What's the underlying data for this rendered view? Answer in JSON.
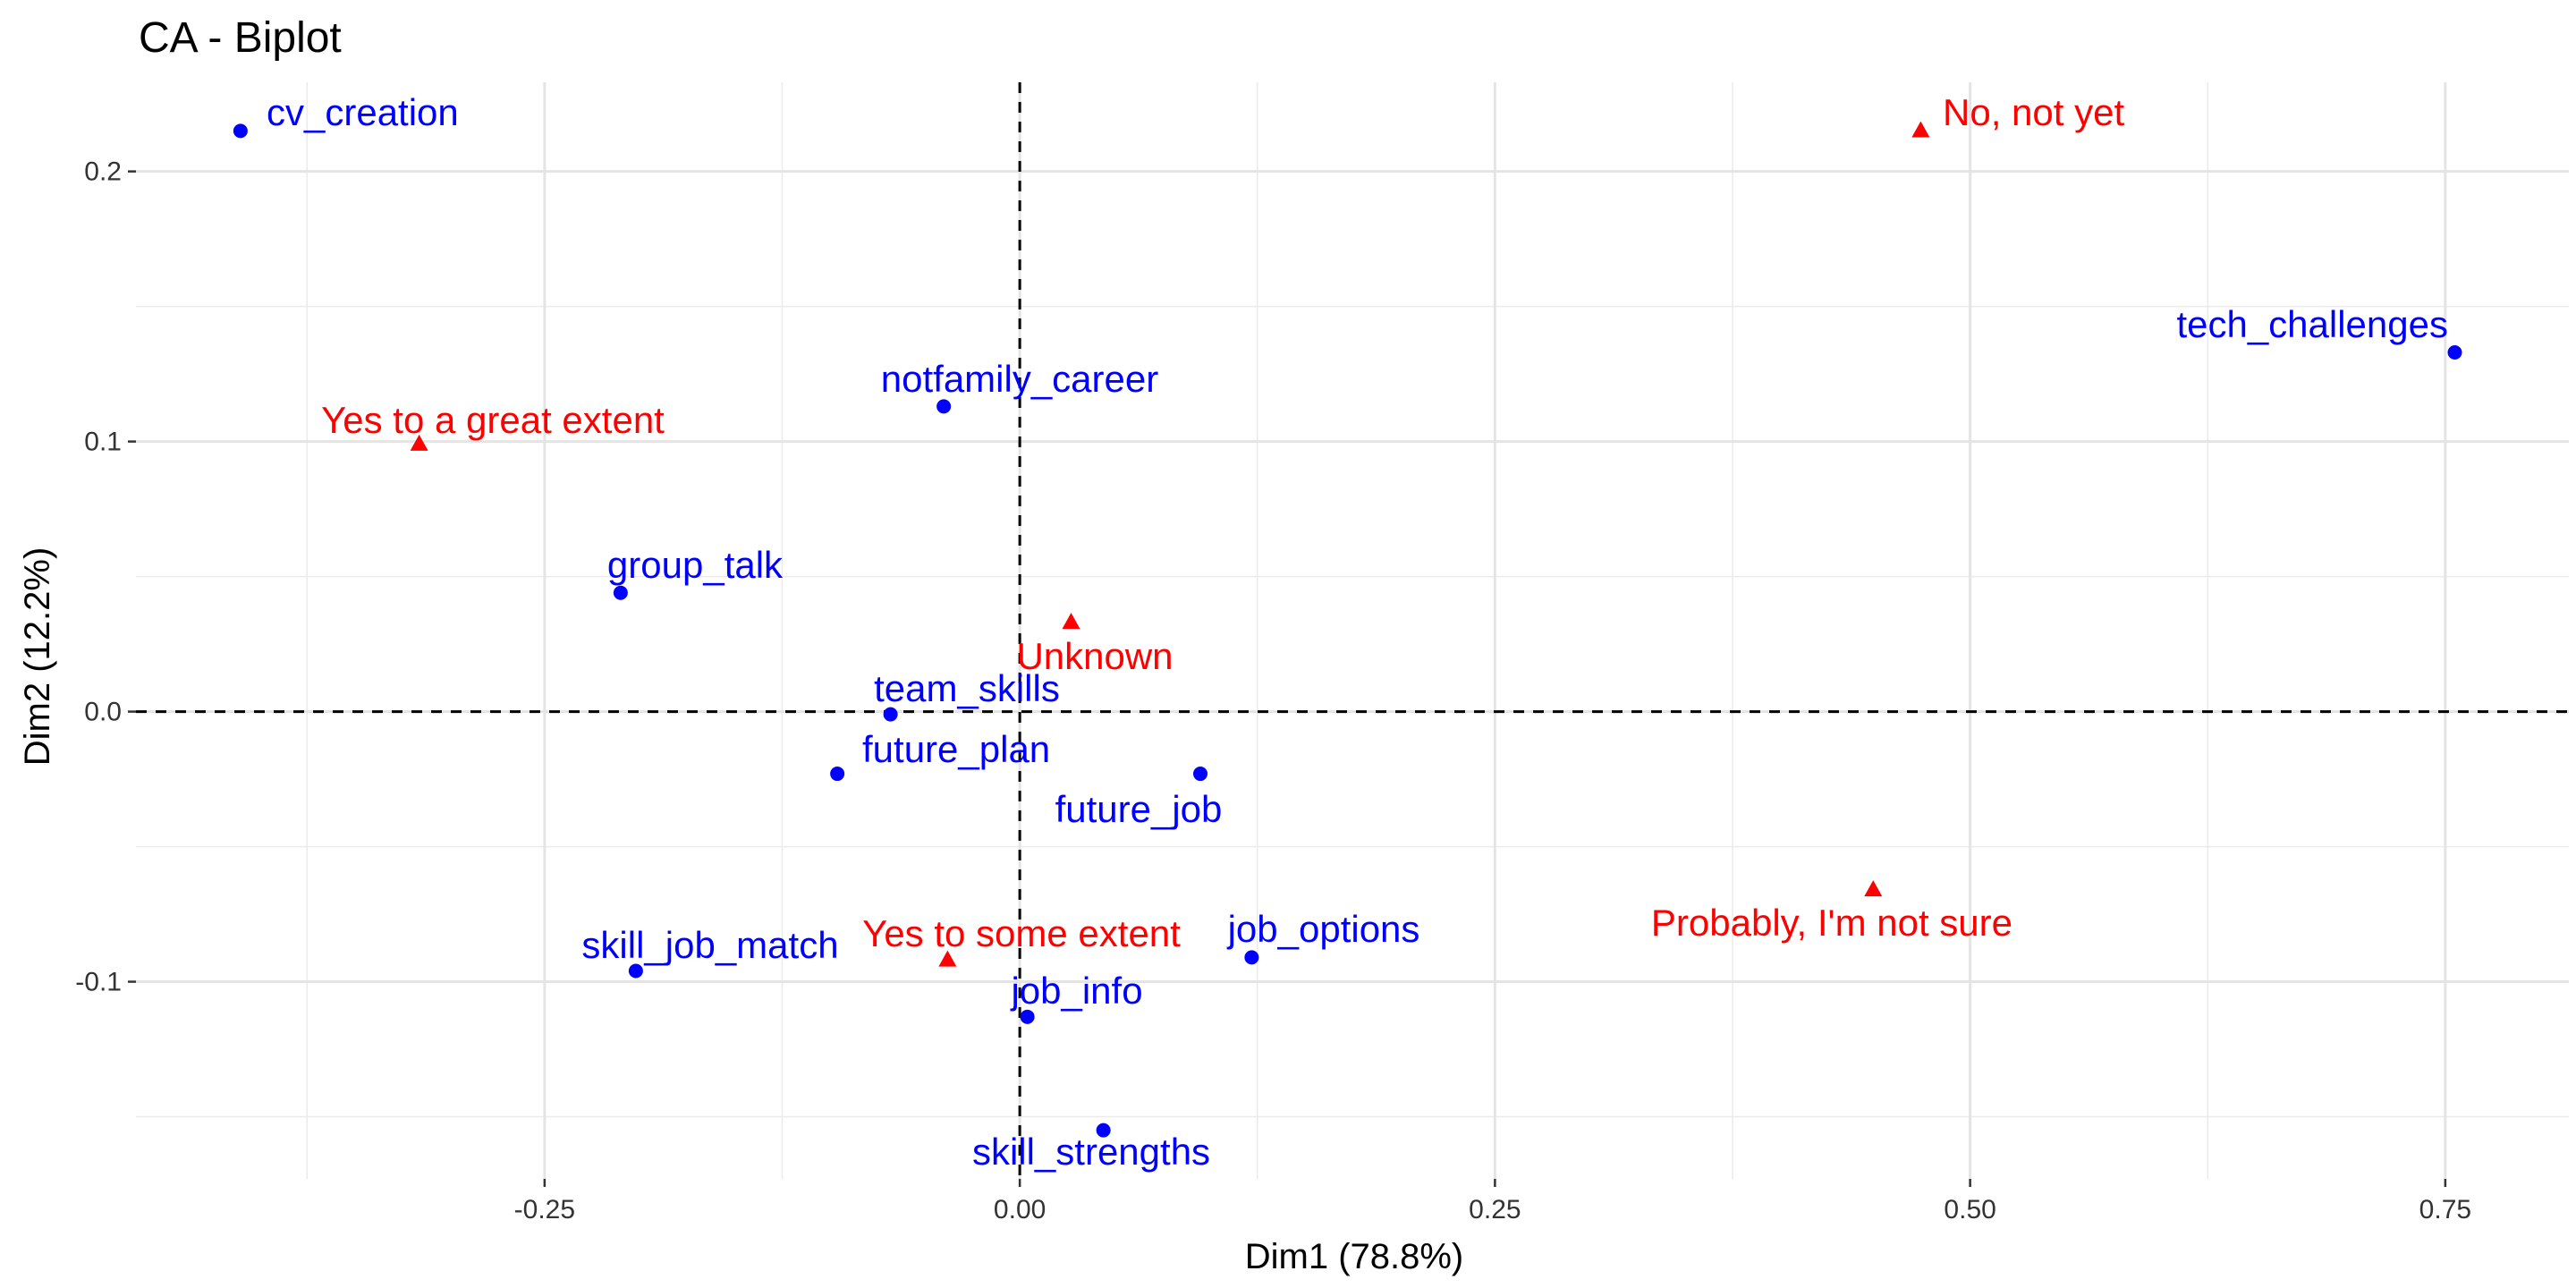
{
  "chart_data": {
    "type": "scatter",
    "title": "CA - Biplot",
    "xlabel": "Dim1 (78.8%)",
    "ylabel": "Dim2 (12.2%)",
    "xlim": [
      -0.465,
      0.815
    ],
    "ylim": [
      -0.173,
      0.233
    ],
    "x_ticks": [
      {
        "value": -0.25,
        "label": "-0.25"
      },
      {
        "value": 0.0,
        "label": "0.00"
      },
      {
        "value": 0.25,
        "label": "0.25"
      },
      {
        "value": 0.5,
        "label": "0.50"
      },
      {
        "value": 0.75,
        "label": "0.75"
      }
    ],
    "y_ticks": [
      {
        "value": -0.1,
        "label": "-0.1"
      },
      {
        "value": 0.0,
        "label": "0.0"
      },
      {
        "value": 0.1,
        "label": "0.1"
      },
      {
        "value": 0.2,
        "label": "0.2"
      }
    ],
    "grid": true,
    "reference_lines": {
      "x": 0,
      "y": 0,
      "style": "dashed"
    },
    "colors": {
      "columns": "#0000ff",
      "rows": "#ff0000"
    },
    "series": [
      {
        "marker": "circle",
        "color": "#0000ff",
        "points": [
          {
            "label": "cv_creation",
            "x": -0.41,
            "y": 0.215,
            "anchor": "start"
          },
          {
            "label": "tech_challenges",
            "x": 0.755,
            "y": 0.133,
            "anchor": "end-above"
          },
          {
            "label": "notfamily_career",
            "x": -0.04,
            "y": 0.113,
            "anchor": "middle-above"
          },
          {
            "label": "group_talk",
            "x": -0.21,
            "y": 0.044,
            "anchor": "middle-above"
          },
          {
            "label": "team_skills",
            "x": -0.068,
            "y": -0.001,
            "anchor": "middle-above"
          },
          {
            "label": "future_plan",
            "x": -0.096,
            "y": -0.023,
            "anchor": "start-above"
          },
          {
            "label": "future_job",
            "x": 0.095,
            "y": -0.023,
            "anchor": "middle-below"
          },
          {
            "label": "skill_job_match",
            "x": -0.202,
            "y": -0.096,
            "anchor": "middle-above"
          },
          {
            "label": "job_options",
            "x": 0.122,
            "y": -0.091,
            "anchor": "middle-above"
          },
          {
            "label": "job_info",
            "x": 0.004,
            "y": -0.113,
            "anchor": "middle-above"
          },
          {
            "label": "skill_strengths",
            "x": 0.044,
            "y": -0.155,
            "anchor": "end-below"
          }
        ]
      },
      {
        "marker": "triangle",
        "color": "#ff0000",
        "points": [
          {
            "label": "No, not yet",
            "x": 0.474,
            "y": 0.215,
            "anchor": "start"
          },
          {
            "label": "Yes to a great extent",
            "x": -0.316,
            "y": 0.099,
            "anchor": "middle-above"
          },
          {
            "label": "Unknown",
            "x": 0.027,
            "y": 0.033,
            "anchor": "end-below"
          },
          {
            "label": "Probably, I'm not sure",
            "x": 0.449,
            "y": -0.066,
            "anchor": "end-below"
          },
          {
            "label": "Yes to some extent",
            "x": -0.038,
            "y": -0.092,
            "anchor": "middle-above"
          }
        ]
      }
    ]
  }
}
